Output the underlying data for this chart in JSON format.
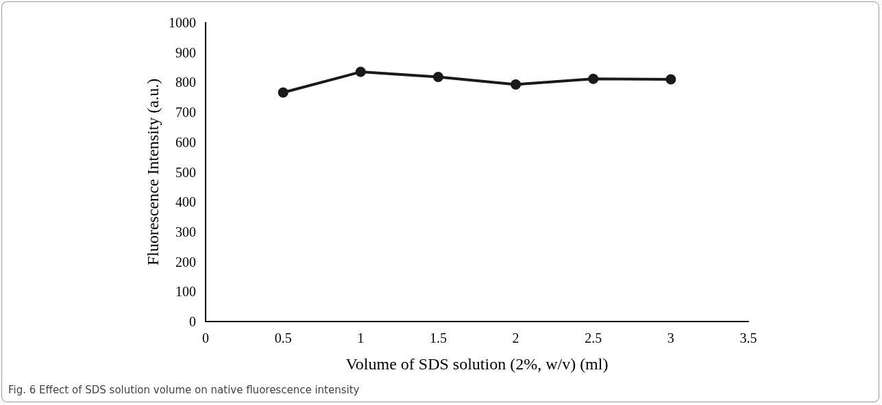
{
  "chart_data": {
    "type": "line",
    "xlabel": "Volume of SDS solution (2%, w/v) (ml)",
    "ylabel": "Fluorescence Intensity (a.u.)",
    "x": [
      0.5,
      1,
      1.5,
      2,
      2.5,
      3
    ],
    "series": [
      {
        "color": "#1a1a1a",
        "values": [
          766,
          835,
          818,
          793,
          812,
          810
        ]
      }
    ],
    "xlim": [
      0,
      3.5
    ],
    "xticks": [
      0,
      0.5,
      1,
      1.5,
      2,
      2.5,
      3,
      3.5
    ],
    "ylim": [
      0,
      1000
    ],
    "yticks": [
      0,
      100,
      200,
      300,
      400,
      500,
      600,
      700,
      800,
      900,
      1000
    ],
    "grid": false,
    "marker": "circle",
    "line_style": "solid",
    "annotations": [
      "Fig. 6 Effect of SDS solution volume on native fluorescence intensity"
    ]
  }
}
